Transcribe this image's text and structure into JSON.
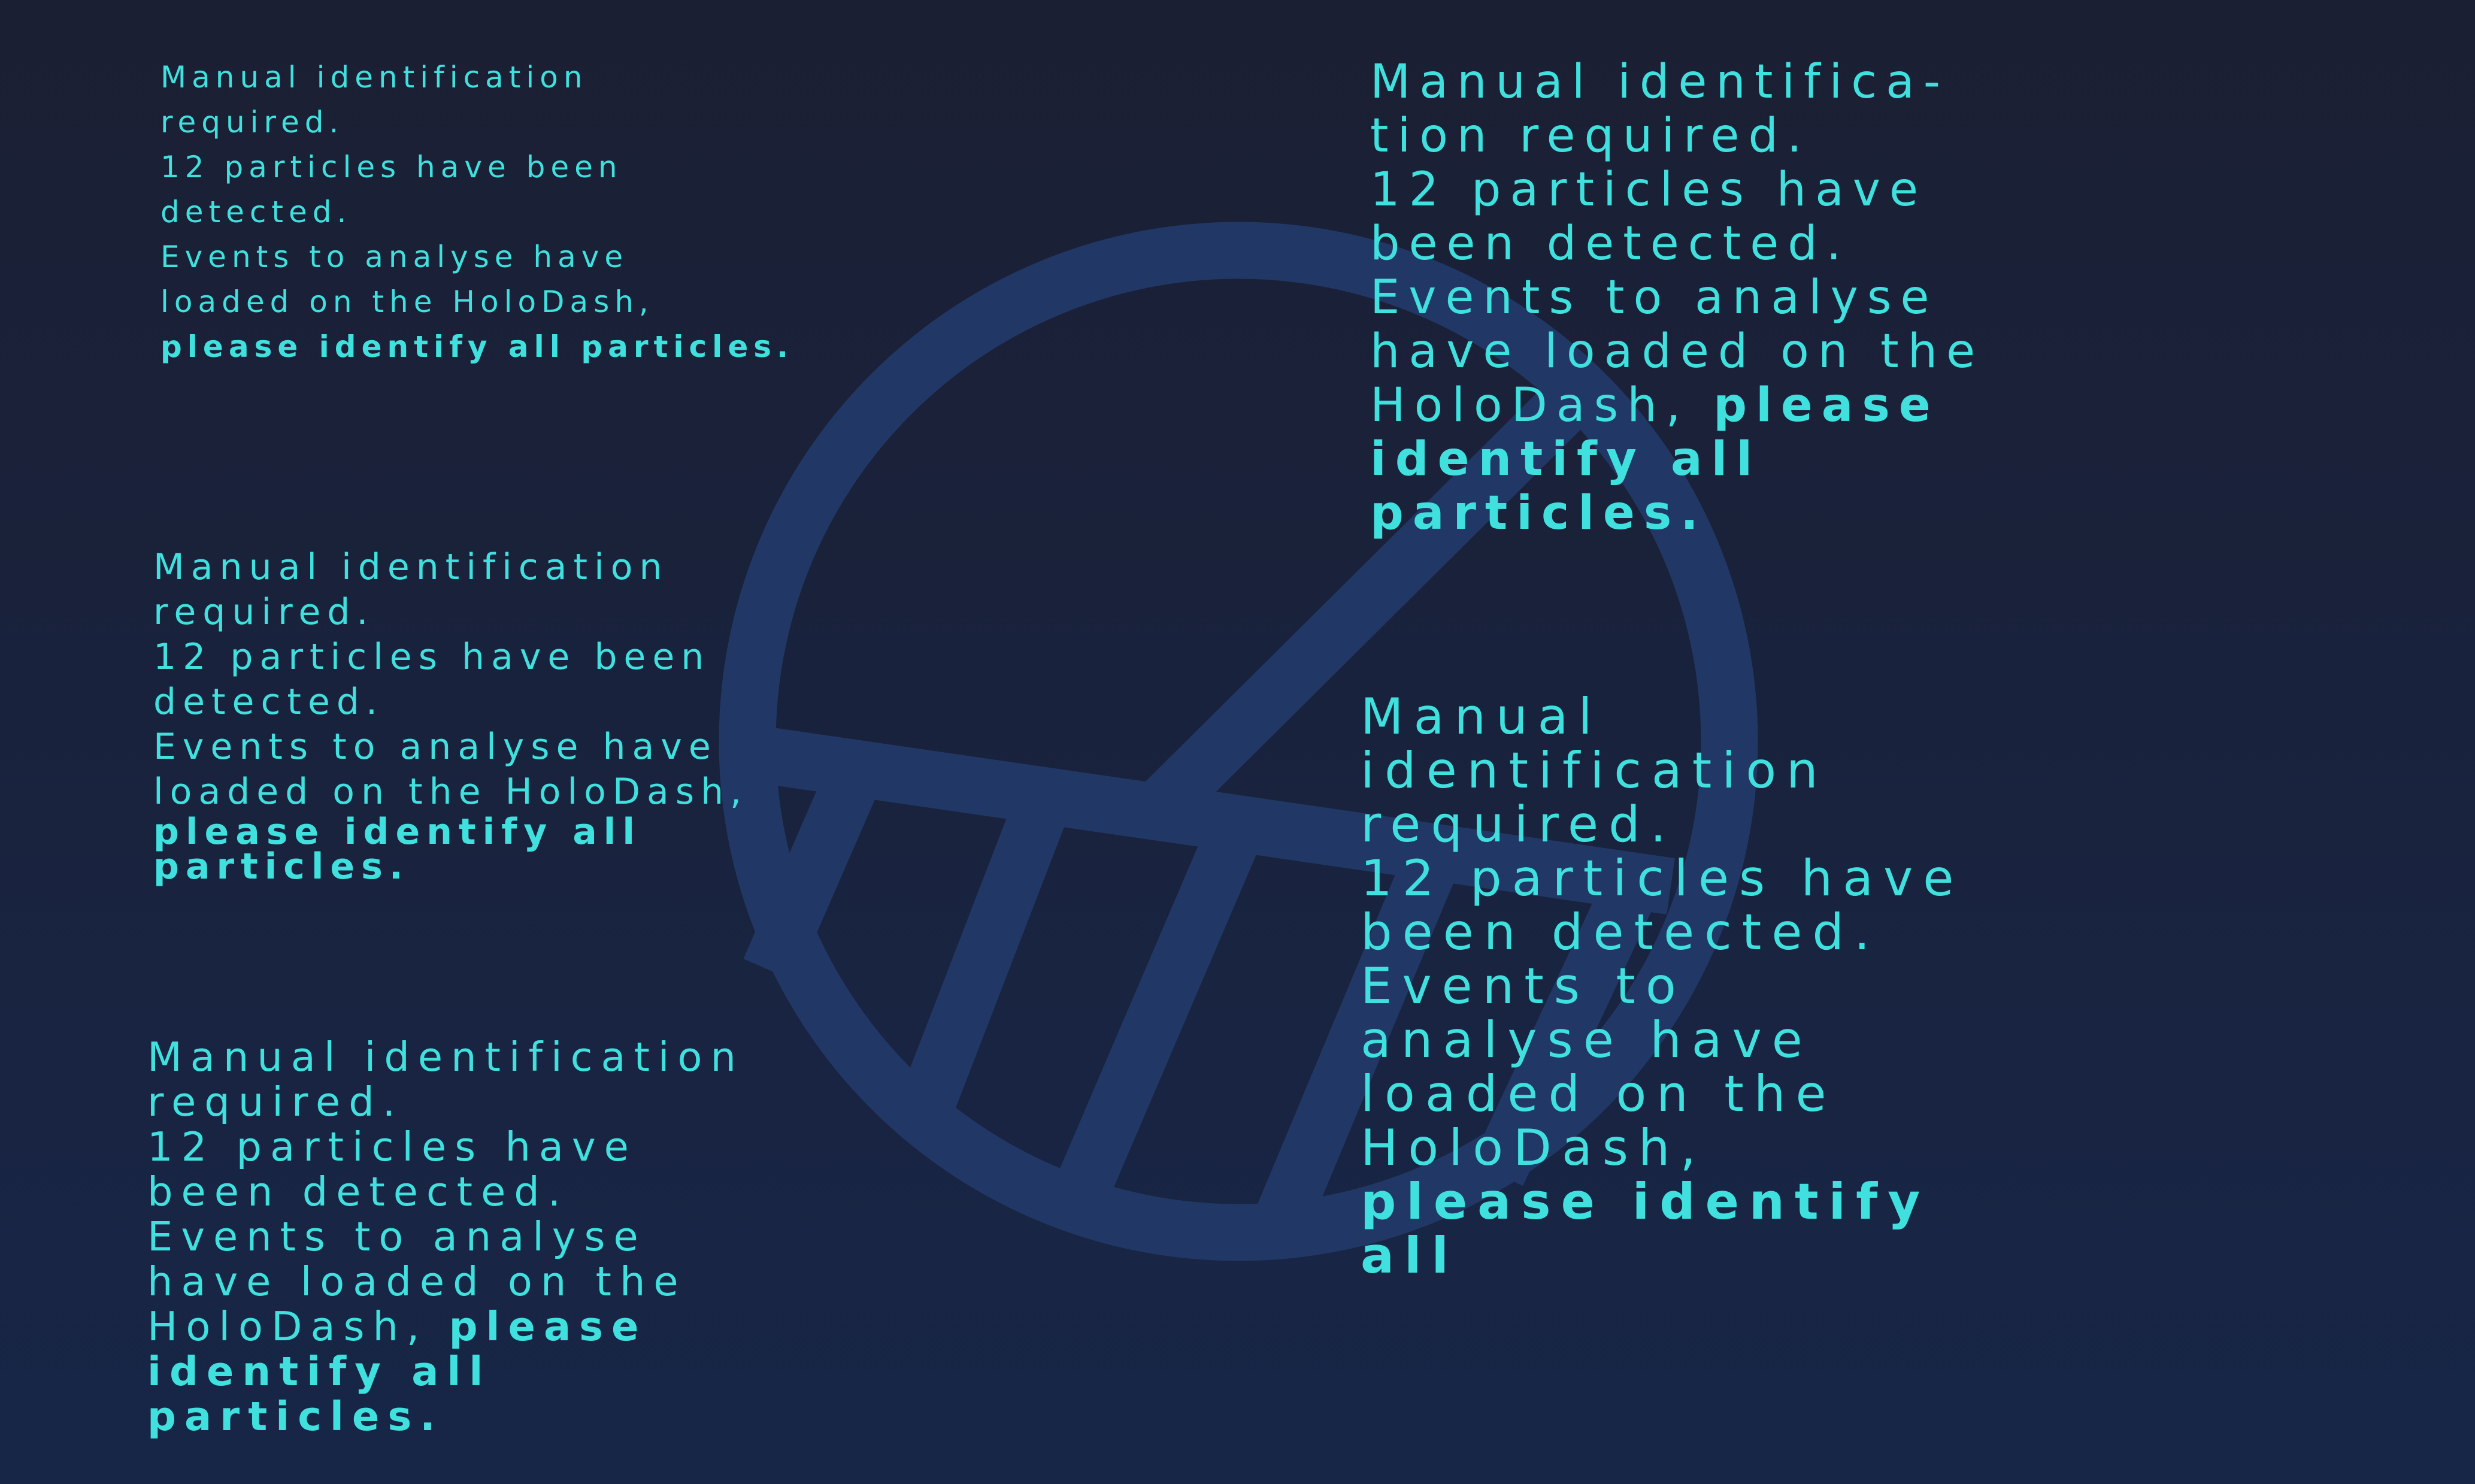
{
  "theme": {
    "background_top": "#1b1f33",
    "background_bottom": "#172647",
    "text_color": "#3fe0dd",
    "emblem_color": "#213866"
  },
  "emblem": {
    "icon": "detector-slice-icon"
  },
  "blocks": [
    {
      "lines": [
        "Manual identification",
        "required.",
        "12 particles have been",
        "detected.",
        "Events to analyse have",
        "loaded on the HoloDash,"
      ],
      "bold_line": "please identify all particles."
    },
    {
      "lines": [
        "Manual identification",
        "required.",
        "12 particles have been",
        "detected.",
        "Events to analyse have",
        "loaded on the HoloDash,"
      ],
      "bold_lines": [
        "please identify all",
        "particles."
      ]
    },
    {
      "lines": [
        "Manual identification",
        "required.",
        "12 particles have",
        "been detected.",
        "Events to analyse",
        "have loaded on the"
      ],
      "mixed_plain": "HoloDash, ",
      "mixed_bold": "please",
      "bold_lines": [
        "identify all",
        "particles."
      ]
    },
    {
      "lines": [
        "Manual identifica-",
        "tion required.",
        "12 particles have",
        "been detected.",
        "Events to analyse",
        "have loaded on the"
      ],
      "mixed_plain": "HoloDash, ",
      "mixed_bold": "please",
      "bold_lines": [
        "identify all",
        "particles."
      ]
    },
    {
      "lines": [
        "Manual",
        "identification",
        "required.",
        "12 particles have",
        "been detected.",
        "Events to",
        "analyse have",
        "loaded on the",
        "HoloDash,"
      ],
      "bold_lines": [
        "please identify",
        "all"
      ]
    }
  ]
}
